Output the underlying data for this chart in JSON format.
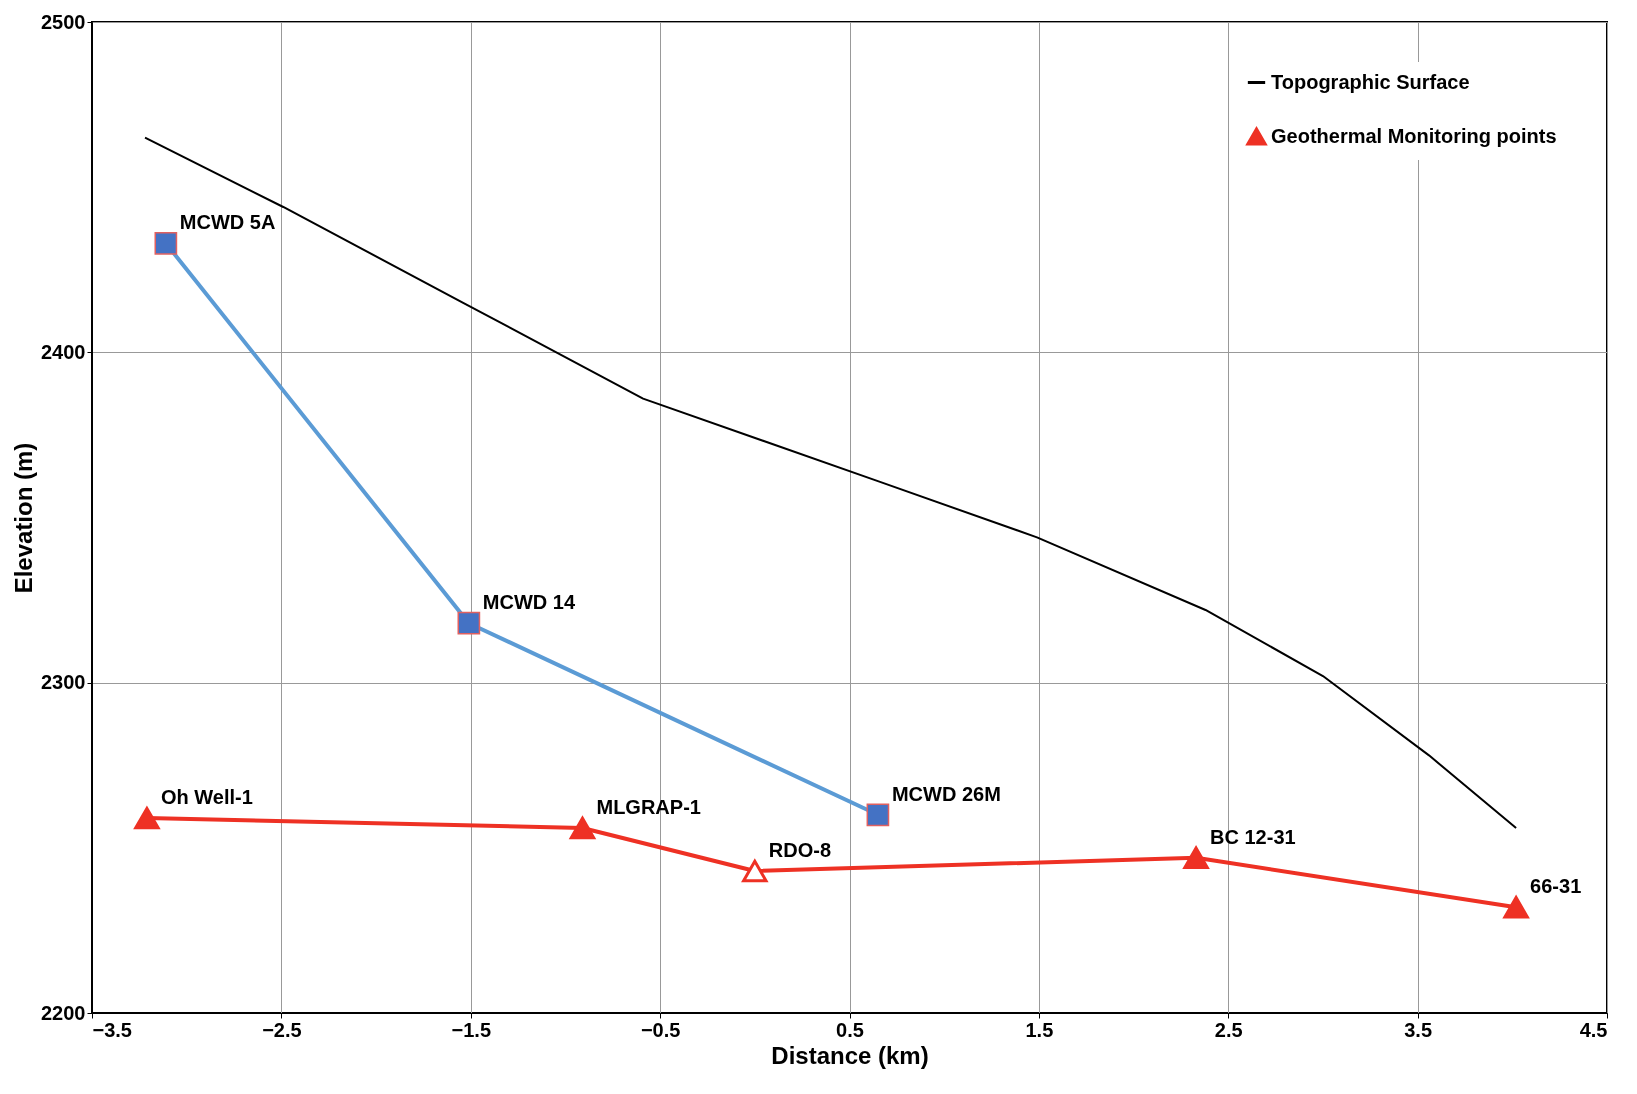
{
  "chart_data": {
    "type": "line",
    "xlabel": "Distance (km)",
    "ylabel": "Elevation (m)",
    "xlim": [
      -3.5,
      4.5
    ],
    "xticks": [
      -3.5,
      -2.5,
      -1.5,
      -0.5,
      0.5,
      1.5,
      2.5,
      3.5,
      4.5
    ],
    "ylim": [
      2200,
      2500
    ],
    "yticks": [
      2200,
      2300,
      2400,
      2500
    ],
    "grid": true,
    "legend": "top right",
    "series": [
      {
        "name": "Topographic Surface",
        "color": "#000000",
        "marker": "none",
        "x": [
          -3.22,
          -2.49,
          -1.54,
          -0.59,
          0.65,
          1.49,
          2.38,
          3.0,
          3.56,
          4.02
        ],
        "values": [
          2465,
          2444,
          2415,
          2386,
          2361,
          2344,
          2322,
          2302,
          2278,
          2256
        ]
      },
      {
        "color": "#5b9bd5",
        "marker": "square",
        "colors": [
          "#4472c4",
          "#4472c4",
          "#4472c4"
        ],
        "x": [
          -3.11,
          -1.51,
          0.65
        ],
        "values": [
          2433,
          2318,
          2260
        ]
      },
      {
        "name": "Geothermal Monitoring points",
        "color": "#ee3124",
        "marker": "triangle",
        "colors": [
          "#ee3124",
          "#ee3124",
          "#ffffff",
          "#ee3124",
          "#ee3124"
        ],
        "x": [
          -3.21,
          -0.91,
          0.0,
          2.33,
          4.02
        ],
        "values": [
          2259,
          2256,
          2243,
          2247,
          2232
        ]
      }
    ],
    "annotations": [
      {
        "text": "MCWD 5A",
        "x": -3.11,
        "y": 2433
      },
      {
        "text": "MCWD 14",
        "x": -1.51,
        "y": 2318
      },
      {
        "text": "MCWD 26M",
        "x": 0.65,
        "y": 2260
      },
      {
        "text": "Oh Well-1",
        "x": -3.21,
        "y": 2259
      },
      {
        "text": "MLGRAP-1",
        "x": -0.91,
        "y": 2256
      },
      {
        "text": "RDO-8",
        "x": 0.0,
        "y": 2243
      },
      {
        "text": "BC 12-31",
        "x": 2.33,
        "y": 2247
      },
      {
        "text": "66-31",
        "x": 4.02,
        "y": 2232
      }
    ]
  }
}
